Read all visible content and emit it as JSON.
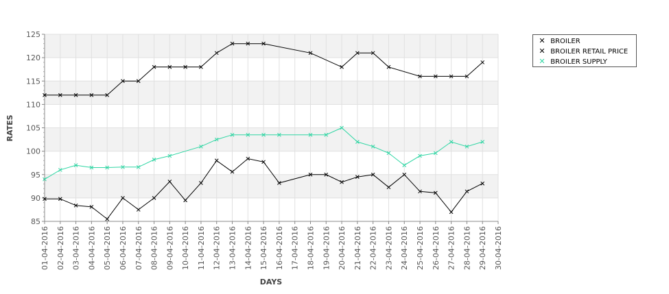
{
  "chart_data": {
    "type": "line",
    "xlabel": "DAYS",
    "ylabel": "RATES",
    "ylim": [
      85,
      125
    ],
    "yticks": [
      85,
      90,
      95,
      100,
      105,
      110,
      115,
      120,
      125
    ],
    "categories": [
      "01-04-2016",
      "02-04-2016",
      "03-04-2016",
      "04-04-2016",
      "05-04-2016",
      "06-04-2016",
      "07-04-2016",
      "08-04-2016",
      "09-04-2016",
      "10-04-2016",
      "11-04-2016",
      "12-04-2016",
      "13-04-2016",
      "14-04-2016",
      "15-04-2016",
      "16-04-2016",
      "17-04-2016",
      "18-04-2016",
      "19-04-2016",
      "20-04-2016",
      "21-04-2016",
      "22-04-2016",
      "23-04-2016",
      "24-04-2016",
      "25-04-2016",
      "26-04-2016",
      "27-04-2016",
      "28-04-2016",
      "29-04-2016",
      "30-04-2016"
    ],
    "grid": true,
    "legend_position": "top-right",
    "series": [
      {
        "name": "BROILER",
        "color": "#000000",
        "values": [
          112,
          112,
          112,
          112,
          112,
          115,
          115,
          118,
          118,
          118,
          118,
          121,
          123,
          123,
          123,
          null,
          null,
          121,
          null,
          118,
          121,
          121,
          118,
          null,
          116,
          116,
          116,
          116,
          119,
          null
        ]
      },
      {
        "name": "BROILER RETAIL PRICE",
        "color": "#000000",
        "values": [
          89.8,
          89.8,
          88.4,
          88.1,
          85.5,
          90,
          87.5,
          90,
          93.5,
          89.5,
          93.2,
          98,
          95.6,
          98.4,
          97.7,
          93.2,
          null,
          95,
          95,
          93.4,
          94.5,
          95,
          92.3,
          95,
          91.4,
          91.1,
          87,
          91.4,
          93.1,
          null
        ]
      },
      {
        "name": "BROILER SUPPLY",
        "color": "#2ed6a3",
        "values": [
          94,
          96,
          97,
          96.5,
          96.5,
          96.6,
          96.6,
          98.2,
          99,
          null,
          101,
          102.5,
          103.5,
          103.5,
          103.5,
          103.5,
          null,
          103.5,
          103.5,
          105,
          102,
          101,
          99.6,
          97,
          99,
          99.6,
          102,
          101,
          102,
          null
        ]
      }
    ]
  }
}
